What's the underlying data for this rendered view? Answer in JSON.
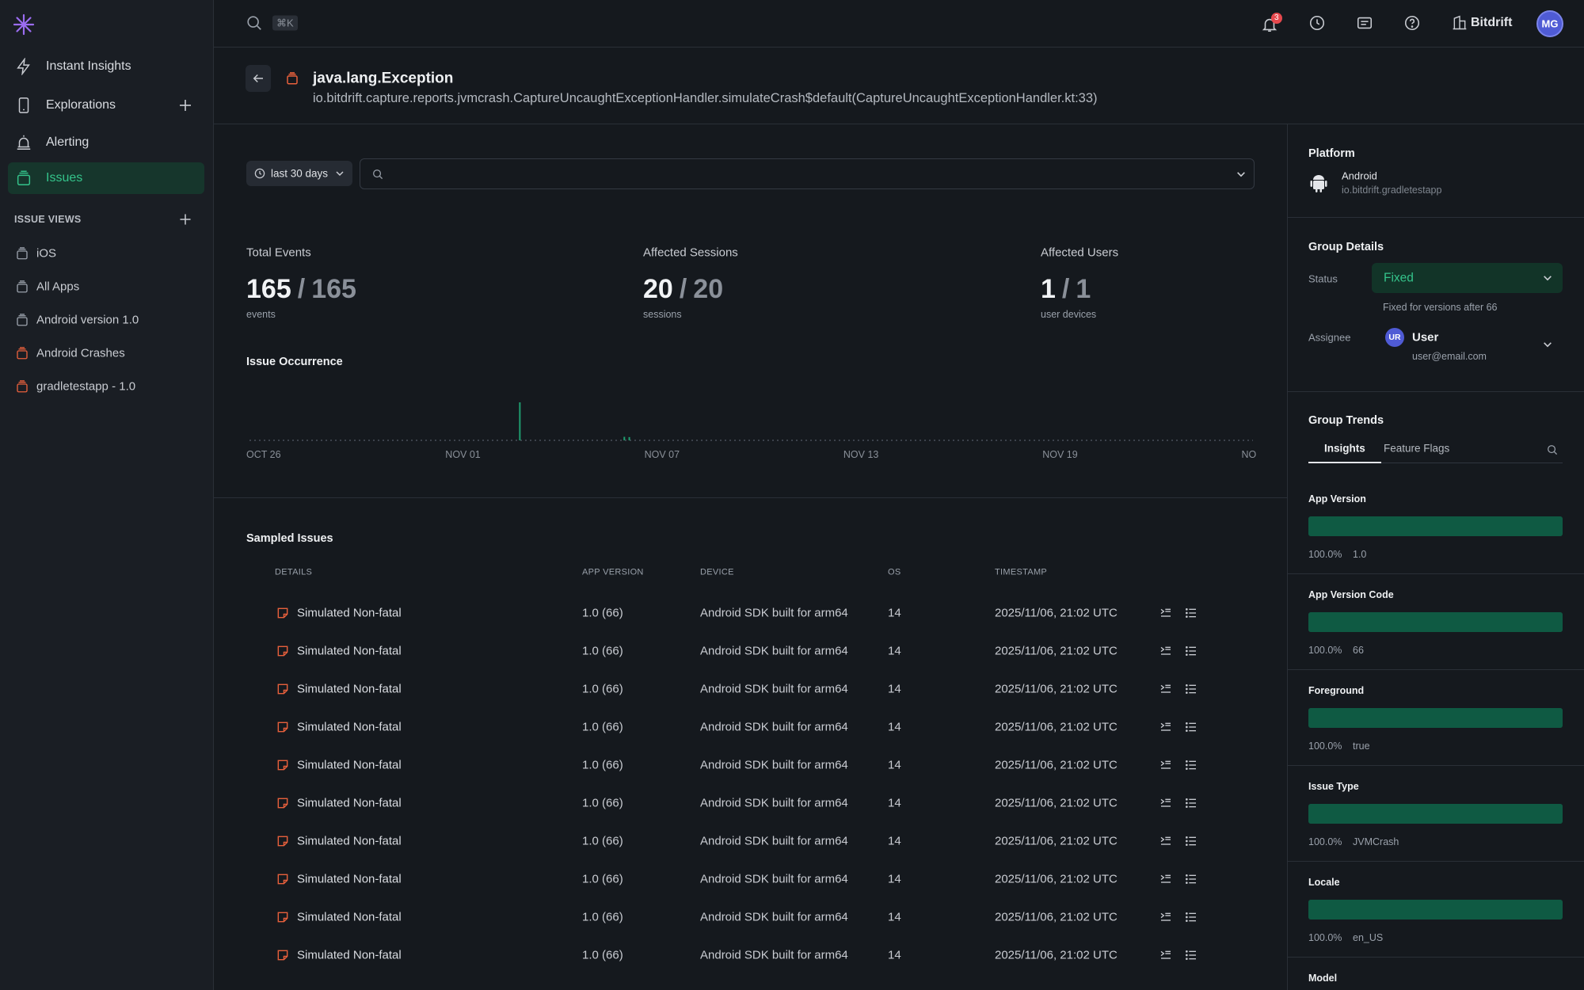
{
  "nav": {
    "items": [
      "Instant Insights",
      "Explorations",
      "Alerting",
      "Issues"
    ],
    "active": 3,
    "section_title": "ISSUE VIEWS",
    "views": [
      "iOS",
      "All Apps",
      "Android version 1.0",
      "Android Crashes",
      "gradletestapp - 1.0"
    ]
  },
  "topbar": {
    "shortcut": "⌘K",
    "notifications": 3,
    "org": "Bitdrift",
    "avatar": "MG"
  },
  "issue": {
    "title": "java.lang.Exception",
    "subtitle": "io.bitdrift.capture.reports.jvmcrash.CaptureUncaughtExceptionHandler.simulateCrash$default(CaptureUncaughtExceptionHandler.kt:33)"
  },
  "filters": {
    "range": "last 30 days"
  },
  "stats_separator": "/",
  "stats": [
    {
      "label": "Total Events",
      "value": 165,
      "total": 165,
      "unit": "events"
    },
    {
      "label": "Affected Sessions",
      "value": 20,
      "total": 20,
      "unit": "sessions"
    },
    {
      "label": "Affected Users",
      "value": 1,
      "total": 1,
      "unit": "user devices"
    }
  ],
  "occurrence": {
    "title": "Issue Occurrence",
    "xlim": [
      0,
      30.25
    ],
    "ylim": [
      0,
      140
    ],
    "xticks": [
      {
        "value": 0,
        "label": "OCT 26"
      },
      {
        "value": 6,
        "label": "NOV 01"
      },
      {
        "value": 12,
        "label": "NOV 07"
      },
      {
        "value": 18,
        "label": "NOV 13"
      },
      {
        "value": 24,
        "label": "NOV 19"
      },
      {
        "value": 30,
        "label": "NO"
      }
    ],
    "color": "#1f9e70",
    "bars": [
      {
        "x": 8.15,
        "value": 140
      },
      {
        "x": 11.3,
        "value": 13
      },
      {
        "x": 11.45,
        "value": 12
      }
    ]
  },
  "sampled": {
    "title": "Sampled Issues",
    "columns": [
      "DETAILS",
      "APP VERSION",
      "DEVICE",
      "OS",
      "TIMESTAMP"
    ],
    "rows": [
      [
        "Simulated Non-fatal",
        "1.0 (66)",
        "Android SDK built for arm64",
        14,
        "2025/11/06, 21:02 UTC"
      ],
      [
        "Simulated Non-fatal",
        "1.0 (66)",
        "Android SDK built for arm64",
        14,
        "2025/11/06, 21:02 UTC"
      ],
      [
        "Simulated Non-fatal",
        "1.0 (66)",
        "Android SDK built for arm64",
        14,
        "2025/11/06, 21:02 UTC"
      ],
      [
        "Simulated Non-fatal",
        "1.0 (66)",
        "Android SDK built for arm64",
        14,
        "2025/11/06, 21:02 UTC"
      ],
      [
        "Simulated Non-fatal",
        "1.0 (66)",
        "Android SDK built for arm64",
        14,
        "2025/11/06, 21:02 UTC"
      ],
      [
        "Simulated Non-fatal",
        "1.0 (66)",
        "Android SDK built for arm64",
        14,
        "2025/11/06, 21:02 UTC"
      ],
      [
        "Simulated Non-fatal",
        "1.0 (66)",
        "Android SDK built for arm64",
        14,
        "2025/11/06, 21:02 UTC"
      ],
      [
        "Simulated Non-fatal",
        "1.0 (66)",
        "Android SDK built for arm64",
        14,
        "2025/11/06, 21:02 UTC"
      ],
      [
        "Simulated Non-fatal",
        "1.0 (66)",
        "Android SDK built for arm64",
        14,
        "2025/11/06, 21:02 UTC"
      ],
      [
        "Simulated Non-fatal",
        "1.0 (66)",
        "Android SDK built for arm64",
        14,
        "2025/11/06, 21:02 UTC"
      ]
    ]
  },
  "panel": {
    "platform": {
      "title": "Platform",
      "name": "Android",
      "app": "io.bitdrift.gradletestapp"
    },
    "group_details": {
      "title": "Group Details",
      "status_label": "Status",
      "status": "Fixed",
      "status_note": "Fixed for versions after 66",
      "assignee_label": "Assignee",
      "assignee_initials": "UR",
      "assignee_name": "User",
      "assignee_email": "user@email.com"
    },
    "group_trends": {
      "title": "Group Trends",
      "tabs": [
        "Insights",
        "Feature Flags"
      ],
      "active_tab": 0,
      "bar_color": "#0f5a43",
      "breakdowns": [
        {
          "title": "App Version",
          "value": 100,
          "value_label": "100.0%",
          "top": "1.0"
        },
        {
          "title": "App Version Code",
          "value": 100,
          "value_label": "100.0%",
          "top": "66"
        },
        {
          "title": "Foreground",
          "value": 100,
          "value_label": "100.0%",
          "top": "true"
        },
        {
          "title": "Issue Type",
          "value": 100,
          "value_label": "100.0%",
          "top": "JVMCrash"
        },
        {
          "title": "Locale",
          "value": 100,
          "value_label": "100.0%",
          "top": "en_US"
        },
        {
          "title": "Model"
        }
      ]
    }
  }
}
